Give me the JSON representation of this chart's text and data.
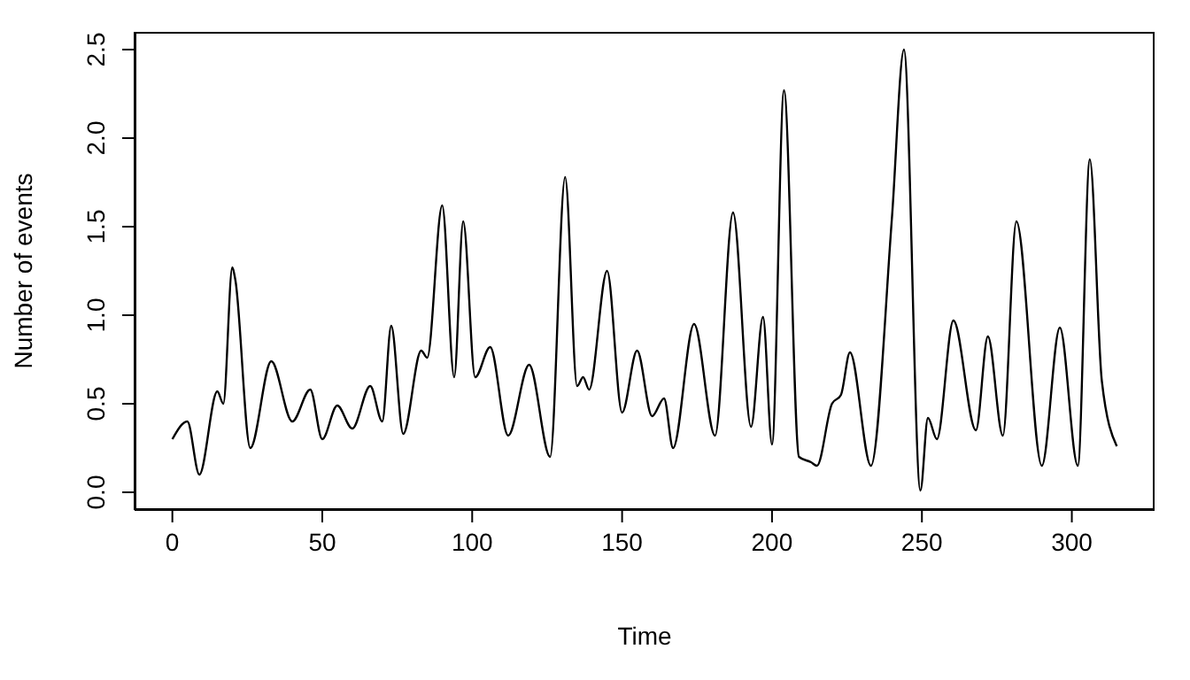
{
  "chart_data": {
    "type": "line",
    "xlabel": "Time",
    "ylabel": "Number of events",
    "x": [
      0,
      5,
      9,
      15,
      17,
      20,
      21,
      26,
      33,
      40,
      46,
      50,
      55,
      60,
      66,
      70,
      73,
      77,
      83,
      85,
      90,
      94,
      97,
      101,
      106,
      112,
      119,
      126,
      131,
      135,
      137,
      139,
      145,
      150,
      155,
      160,
      164,
      167,
      174,
      181,
      187,
      193,
      197,
      200,
      204,
      209,
      213,
      215,
      220,
      223,
      226,
      233,
      240,
      244,
      249.5,
      252,
      255,
      260.5,
      268,
      272,
      277,
      281.5,
      290,
      296,
      302,
      306,
      310,
      315
    ],
    "series": [
      {
        "color": "#000000",
        "values": [
          0.3,
          0.4,
          0.1,
          0.57,
          0.5,
          1.27,
          1.2,
          0.25,
          0.74,
          0.4,
          0.58,
          0.3,
          0.49,
          0.36,
          0.6,
          0.4,
          0.94,
          0.33,
          0.8,
          0.76,
          1.62,
          0.65,
          1.53,
          0.65,
          0.82,
          0.32,
          0.72,
          0.2,
          1.78,
          0.6,
          0.65,
          0.58,
          1.25,
          0.45,
          0.8,
          0.43,
          0.53,
          0.25,
          0.95,
          0.32,
          1.58,
          0.37,
          0.99,
          0.27,
          2.27,
          0.2,
          0.17,
          0.15,
          0.5,
          0.55,
          0.79,
          0.15,
          1.55,
          2.5,
          0.01,
          0.42,
          0.3,
          0.97,
          0.35,
          0.88,
          0.32,
          1.53,
          0.15,
          0.93,
          0.15,
          1.88,
          0.63,
          0.26
        ]
      }
    ],
    "xlim": [
      -12.6,
      327.6
    ],
    "ylim": [
      -0.1,
      2.6
    ],
    "xticks": [
      0,
      50,
      100,
      150,
      200,
      250,
      300
    ],
    "yticks": [
      {
        "value": 0,
        "label": "0.0"
      },
      {
        "value": 0.5,
        "label": "0.5"
      },
      {
        "value": 1,
        "label": "1.0"
      },
      {
        "value": 1.5,
        "label": "1.5"
      },
      {
        "value": 2,
        "label": "2.0"
      },
      {
        "value": 2.5,
        "label": "2.5"
      }
    ],
    "marker": "none",
    "line_style": "solid"
  }
}
